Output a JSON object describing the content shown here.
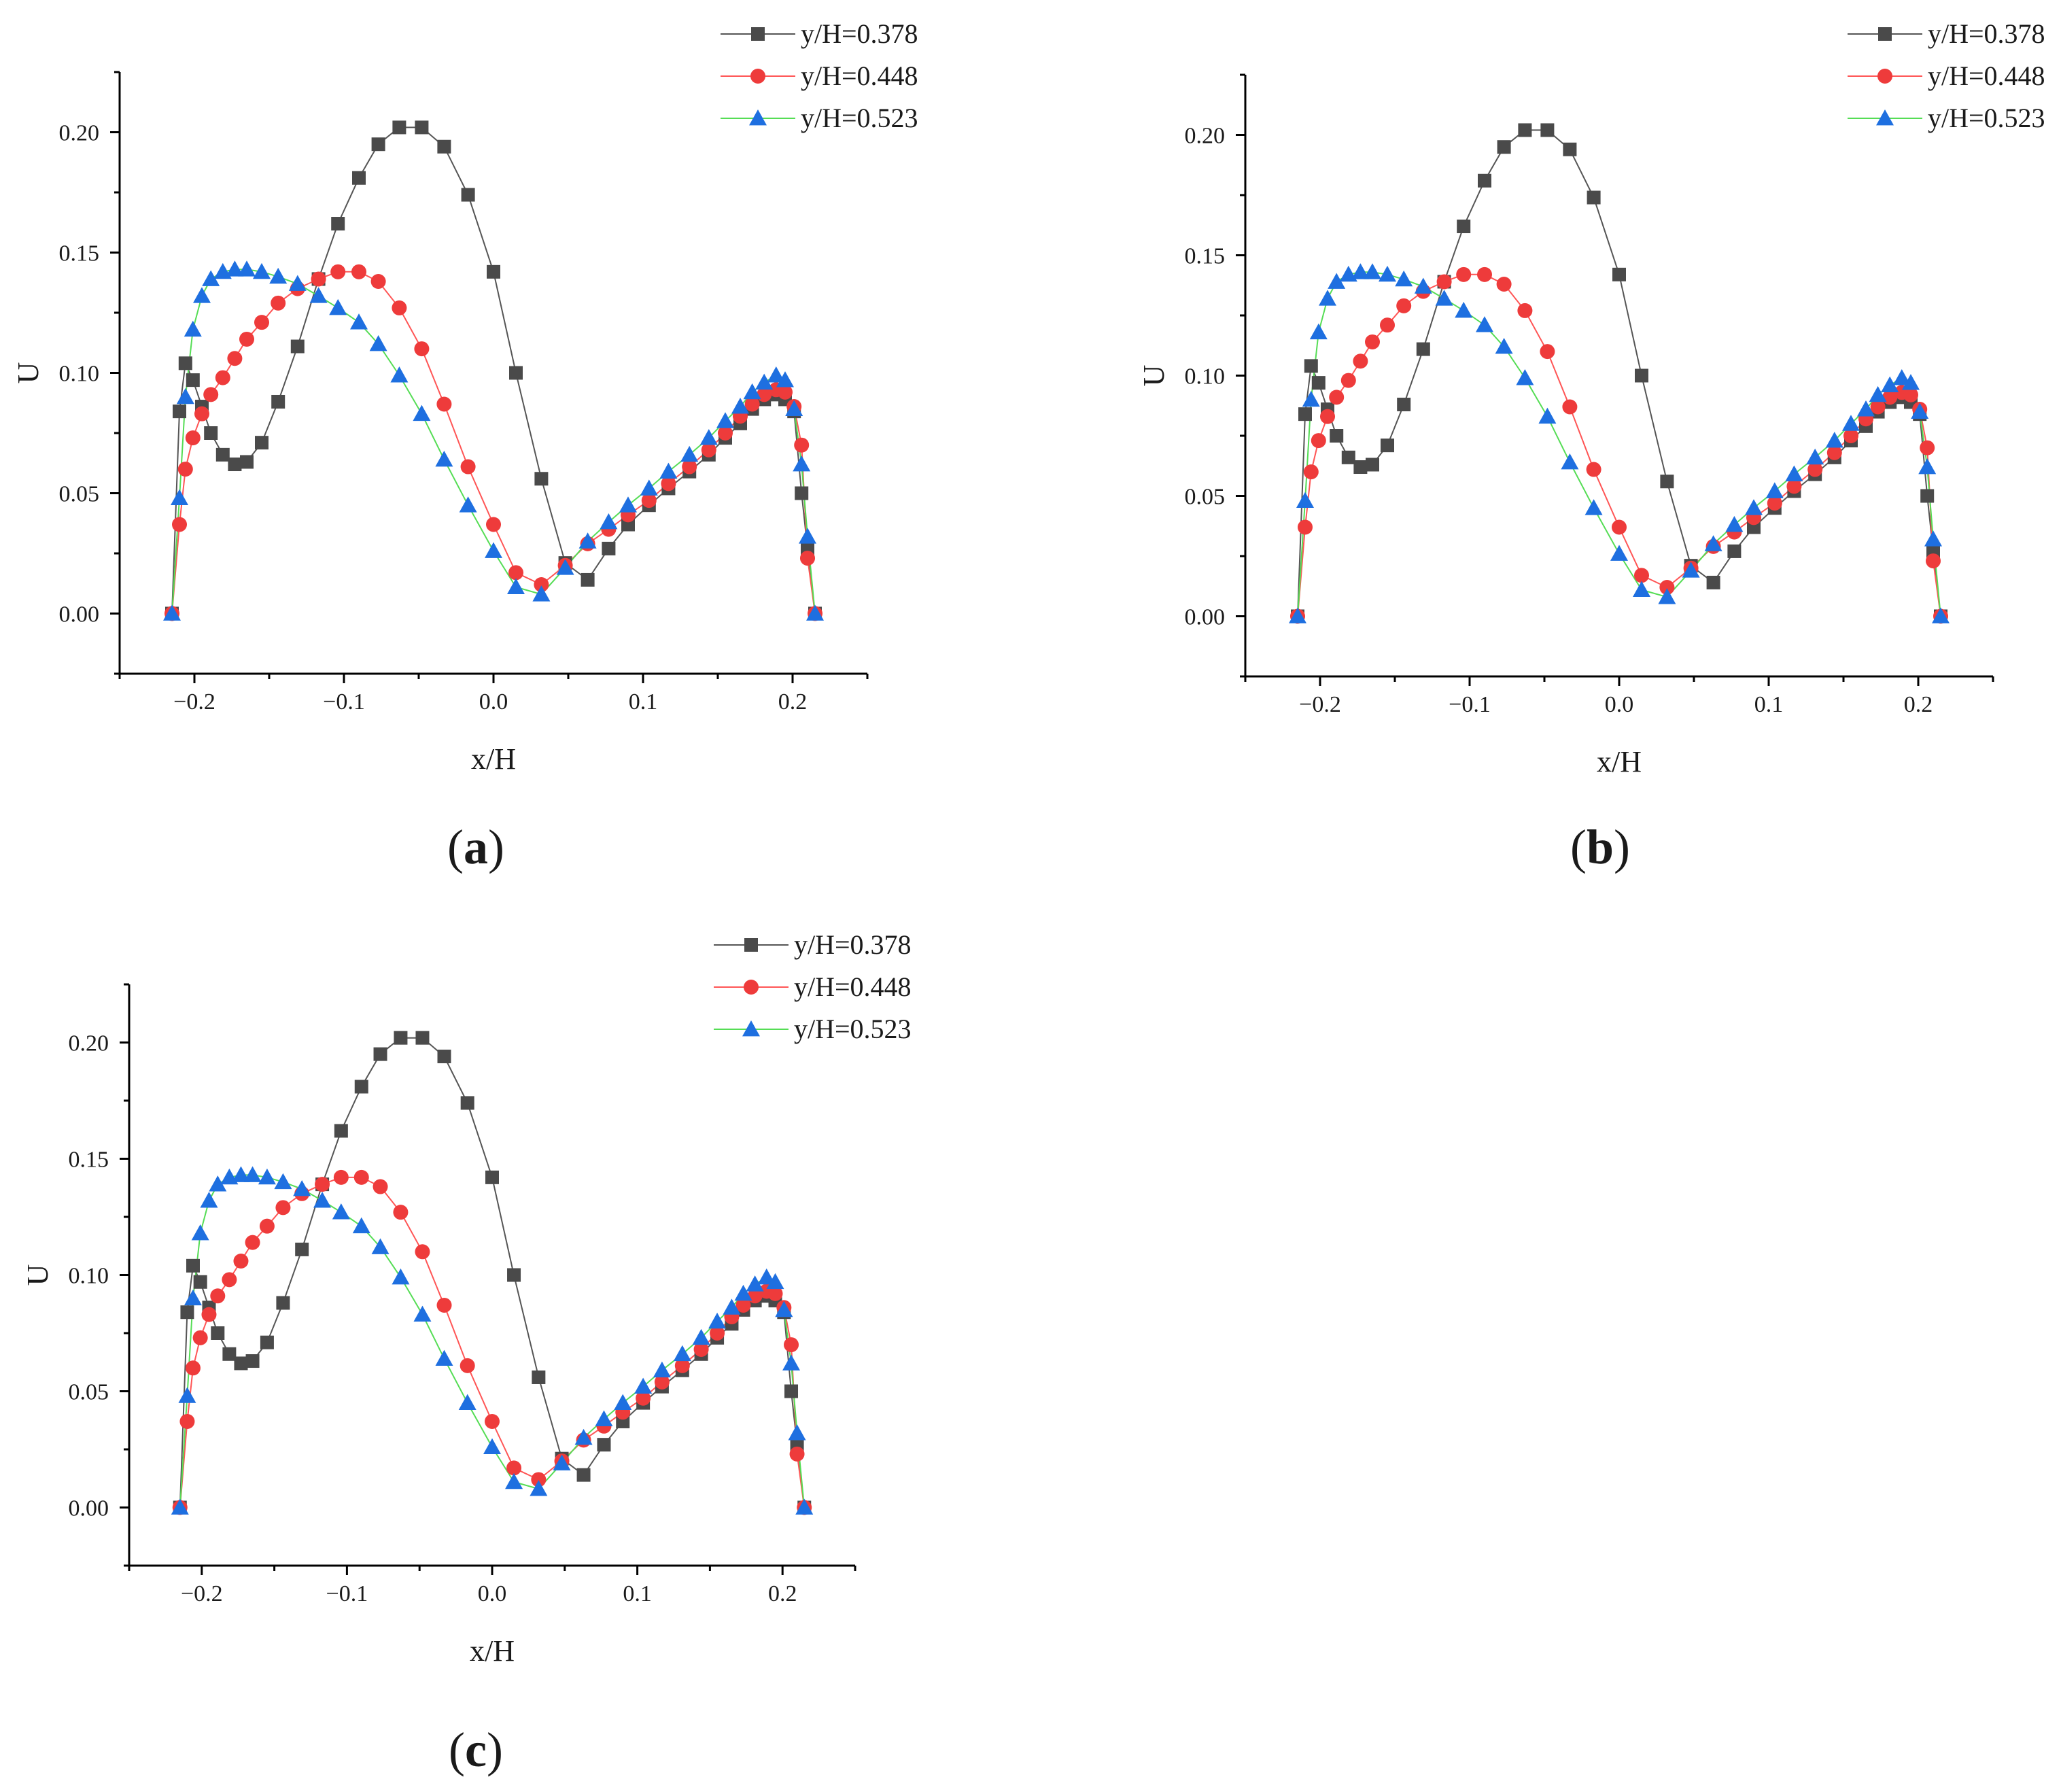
{
  "figure": {
    "panels": [
      {
        "id": "a",
        "label_open": "(",
        "label_letter": "a",
        "label_close": ")"
      },
      {
        "id": "b",
        "label_open": "(",
        "label_letter": "b",
        "label_close": ")"
      },
      {
        "id": "c",
        "label_open": "(",
        "label_letter": "c",
        "label_close": ")"
      }
    ]
  },
  "chart_data": [
    {
      "panel": "a",
      "type": "line",
      "xlabel": "x/H",
      "ylabel": "U",
      "xlim": [
        -0.25,
        0.25
      ],
      "ylim": [
        -0.025,
        0.225
      ],
      "xticks": [
        -0.2,
        -0.1,
        0.0,
        0.1,
        0.2
      ],
      "xtick_labels": [
        "−0.2",
        "−0.1",
        "0.0",
        "0.1",
        "0.2"
      ],
      "yticks": [
        0.0,
        0.05,
        0.1,
        0.15,
        0.2
      ],
      "ytick_labels": [
        "0.00",
        "0.05",
        "0.10",
        "0.15",
        "0.20"
      ],
      "legend_position": "top-right",
      "series": [
        {
          "name": "y/H=0.378",
          "marker": "square",
          "line_color": "#555555",
          "marker_color": "#4a4a4a",
          "x": [
            -0.215,
            -0.21,
            -0.206,
            -0.201,
            -0.195,
            -0.189,
            -0.181,
            -0.173,
            -0.165,
            -0.155,
            -0.144,
            -0.131,
            -0.117,
            -0.104,
            -0.09,
            -0.077,
            -0.063,
            -0.048,
            -0.033,
            -0.017,
            0.0,
            0.015,
            0.032,
            0.048,
            0.063,
            0.077,
            0.09,
            0.104,
            0.117,
            0.131,
            0.144,
            0.155,
            0.165,
            0.173,
            0.181,
            0.189,
            0.195,
            0.201,
            0.206,
            0.21,
            0.215
          ],
          "y": [
            0.0,
            0.084,
            0.104,
            0.097,
            0.086,
            0.075,
            0.066,
            0.062,
            0.063,
            0.071,
            0.088,
            0.111,
            0.139,
            0.162,
            0.181,
            0.195,
            0.202,
            0.202,
            0.194,
            0.174,
            0.142,
            0.1,
            0.056,
            0.021,
            0.014,
            0.027,
            0.037,
            0.045,
            0.052,
            0.059,
            0.066,
            0.073,
            0.079,
            0.085,
            0.089,
            0.091,
            0.089,
            0.084,
            0.05,
            0.027,
            0.0
          ]
        },
        {
          "name": "y/H=0.448",
          "marker": "circle",
          "line_color": "#ff5555",
          "marker_color": "#ee3b3b",
          "x": [
            -0.215,
            -0.21,
            -0.206,
            -0.201,
            -0.195,
            -0.189,
            -0.181,
            -0.173,
            -0.165,
            -0.155,
            -0.144,
            -0.131,
            -0.117,
            -0.104,
            -0.09,
            -0.077,
            -0.063,
            -0.048,
            -0.033,
            -0.017,
            0.0,
            0.015,
            0.032,
            0.048,
            0.063,
            0.077,
            0.09,
            0.104,
            0.117,
            0.131,
            0.144,
            0.155,
            0.165,
            0.173,
            0.181,
            0.189,
            0.195,
            0.201,
            0.206,
            0.21,
            0.215
          ],
          "y": [
            0.0,
            0.037,
            0.06,
            0.073,
            0.083,
            0.091,
            0.098,
            0.106,
            0.114,
            0.121,
            0.129,
            0.135,
            0.139,
            0.142,
            0.142,
            0.138,
            0.127,
            0.11,
            0.087,
            0.061,
            0.037,
            0.017,
            0.012,
            0.02,
            0.029,
            0.035,
            0.041,
            0.047,
            0.054,
            0.061,
            0.068,
            0.075,
            0.082,
            0.087,
            0.091,
            0.093,
            0.092,
            0.086,
            0.07,
            0.023,
            0.0
          ]
        },
        {
          "name": "y/H=0.523",
          "marker": "triangle",
          "line_color": "#55dd55",
          "marker_color": "#1e6fe0",
          "x": [
            -0.215,
            -0.21,
            -0.206,
            -0.201,
            -0.195,
            -0.189,
            -0.181,
            -0.173,
            -0.165,
            -0.155,
            -0.144,
            -0.131,
            -0.117,
            -0.104,
            -0.09,
            -0.077,
            -0.063,
            -0.048,
            -0.033,
            -0.017,
            0.0,
            0.015,
            0.032,
            0.048,
            0.063,
            0.077,
            0.09,
            0.104,
            0.117,
            0.131,
            0.144,
            0.155,
            0.165,
            0.173,
            0.181,
            0.189,
            0.195,
            0.201,
            0.206,
            0.21,
            0.215
          ],
          "y": [
            0.0,
            0.048,
            0.09,
            0.118,
            0.132,
            0.139,
            0.142,
            0.143,
            0.143,
            0.142,
            0.14,
            0.137,
            0.132,
            0.127,
            0.121,
            0.112,
            0.099,
            0.083,
            0.064,
            0.045,
            0.026,
            0.011,
            0.008,
            0.019,
            0.03,
            0.038,
            0.045,
            0.052,
            0.059,
            0.066,
            0.073,
            0.08,
            0.086,
            0.092,
            0.096,
            0.099,
            0.097,
            0.085,
            0.062,
            0.032,
            0.0
          ]
        }
      ]
    },
    {
      "panel": "b",
      "type": "line",
      "xlabel": "x/H",
      "ylabel": "U",
      "xlim": [
        -0.25,
        0.25
      ],
      "ylim": [
        -0.025,
        0.225
      ],
      "xticks": [
        -0.2,
        -0.1,
        0.0,
        0.1,
        0.2
      ],
      "xtick_labels": [
        "−0.2",
        "−0.1",
        "0.0",
        "0.1",
        "0.2"
      ],
      "yticks": [
        0.0,
        0.05,
        0.1,
        0.15,
        0.2
      ],
      "ytick_labels": [
        "0.00",
        "0.05",
        "0.10",
        "0.15",
        "0.20"
      ],
      "legend_position": "top-right",
      "series": [
        {
          "name": "y/H=0.378",
          "marker": "square",
          "line_color": "#555555",
          "marker_color": "#4a4a4a",
          "x": [
            -0.215,
            -0.21,
            -0.206,
            -0.201,
            -0.195,
            -0.189,
            -0.181,
            -0.173,
            -0.165,
            -0.155,
            -0.144,
            -0.131,
            -0.117,
            -0.104,
            -0.09,
            -0.077,
            -0.063,
            -0.048,
            -0.033,
            -0.017,
            0.0,
            0.015,
            0.032,
            0.048,
            0.063,
            0.077,
            0.09,
            0.104,
            0.117,
            0.131,
            0.144,
            0.155,
            0.165,
            0.173,
            0.181,
            0.189,
            0.195,
            0.201,
            0.206,
            0.21,
            0.215
          ],
          "y": [
            0.0,
            0.084,
            0.104,
            0.097,
            0.086,
            0.075,
            0.066,
            0.062,
            0.063,
            0.071,
            0.088,
            0.111,
            0.139,
            0.162,
            0.181,
            0.195,
            0.202,
            0.202,
            0.194,
            0.174,
            0.142,
            0.1,
            0.056,
            0.021,
            0.014,
            0.027,
            0.037,
            0.045,
            0.052,
            0.059,
            0.066,
            0.073,
            0.079,
            0.085,
            0.089,
            0.091,
            0.089,
            0.084,
            0.05,
            0.027,
            0.0
          ]
        },
        {
          "name": "y/H=0.448",
          "marker": "circle",
          "line_color": "#ff5555",
          "marker_color": "#ee3b3b",
          "x": [
            -0.215,
            -0.21,
            -0.206,
            -0.201,
            -0.195,
            -0.189,
            -0.181,
            -0.173,
            -0.165,
            -0.155,
            -0.144,
            -0.131,
            -0.117,
            -0.104,
            -0.09,
            -0.077,
            -0.063,
            -0.048,
            -0.033,
            -0.017,
            0.0,
            0.015,
            0.032,
            0.048,
            0.063,
            0.077,
            0.09,
            0.104,
            0.117,
            0.131,
            0.144,
            0.155,
            0.165,
            0.173,
            0.181,
            0.189,
            0.195,
            0.201,
            0.206,
            0.21,
            0.215
          ],
          "y": [
            0.0,
            0.037,
            0.06,
            0.073,
            0.083,
            0.091,
            0.098,
            0.106,
            0.114,
            0.121,
            0.129,
            0.135,
            0.139,
            0.142,
            0.142,
            0.138,
            0.127,
            0.11,
            0.087,
            0.061,
            0.037,
            0.017,
            0.012,
            0.02,
            0.029,
            0.035,
            0.041,
            0.047,
            0.054,
            0.061,
            0.068,
            0.075,
            0.082,
            0.087,
            0.091,
            0.093,
            0.092,
            0.086,
            0.07,
            0.023,
            0.0
          ]
        },
        {
          "name": "y/H=0.523",
          "marker": "triangle",
          "line_color": "#55dd55",
          "marker_color": "#1e6fe0",
          "x": [
            -0.215,
            -0.21,
            -0.206,
            -0.201,
            -0.195,
            -0.189,
            -0.181,
            -0.173,
            -0.165,
            -0.155,
            -0.144,
            -0.131,
            -0.117,
            -0.104,
            -0.09,
            -0.077,
            -0.063,
            -0.048,
            -0.033,
            -0.017,
            0.0,
            0.015,
            0.032,
            0.048,
            0.063,
            0.077,
            0.09,
            0.104,
            0.117,
            0.131,
            0.144,
            0.155,
            0.165,
            0.173,
            0.181,
            0.189,
            0.195,
            0.201,
            0.206,
            0.21,
            0.215
          ],
          "y": [
            0.0,
            0.048,
            0.09,
            0.118,
            0.132,
            0.139,
            0.142,
            0.143,
            0.143,
            0.142,
            0.14,
            0.137,
            0.132,
            0.127,
            0.121,
            0.112,
            0.099,
            0.083,
            0.064,
            0.045,
            0.026,
            0.011,
            0.008,
            0.019,
            0.03,
            0.038,
            0.045,
            0.052,
            0.059,
            0.066,
            0.073,
            0.08,
            0.086,
            0.092,
            0.096,
            0.099,
            0.097,
            0.085,
            0.062,
            0.032,
            0.0
          ]
        }
      ]
    },
    {
      "panel": "c",
      "type": "line",
      "xlabel": "x/H",
      "ylabel": "U",
      "xlim": [
        -0.25,
        0.25
      ],
      "ylim": [
        -0.025,
        0.225
      ],
      "xticks": [
        -0.2,
        -0.1,
        0.0,
        0.1,
        0.2
      ],
      "xtick_labels": [
        "−0.2",
        "−0.1",
        "0.0",
        "0.1",
        "0.2"
      ],
      "yticks": [
        0.0,
        0.05,
        0.1,
        0.15,
        0.2
      ],
      "ytick_labels": [
        "0.00",
        "0.05",
        "0.10",
        "0.15",
        "0.20"
      ],
      "legend_position": "top-right",
      "series": [
        {
          "name": "y/H=0.378",
          "marker": "square",
          "line_color": "#555555",
          "marker_color": "#4a4a4a",
          "x": [
            -0.215,
            -0.21,
            -0.206,
            -0.201,
            -0.195,
            -0.189,
            -0.181,
            -0.173,
            -0.165,
            -0.155,
            -0.144,
            -0.131,
            -0.117,
            -0.104,
            -0.09,
            -0.077,
            -0.063,
            -0.048,
            -0.033,
            -0.017,
            0.0,
            0.015,
            0.032,
            0.048,
            0.063,
            0.077,
            0.09,
            0.104,
            0.117,
            0.131,
            0.144,
            0.155,
            0.165,
            0.173,
            0.181,
            0.189,
            0.195,
            0.201,
            0.206,
            0.21,
            0.215
          ],
          "y": [
            0.0,
            0.084,
            0.104,
            0.097,
            0.086,
            0.075,
            0.066,
            0.062,
            0.063,
            0.071,
            0.088,
            0.111,
            0.139,
            0.162,
            0.181,
            0.195,
            0.202,
            0.202,
            0.194,
            0.174,
            0.142,
            0.1,
            0.056,
            0.021,
            0.014,
            0.027,
            0.037,
            0.045,
            0.052,
            0.059,
            0.066,
            0.073,
            0.079,
            0.085,
            0.089,
            0.091,
            0.089,
            0.084,
            0.05,
            0.027,
            0.0
          ]
        },
        {
          "name": "y/H=0.448",
          "marker": "circle",
          "line_color": "#ff5555",
          "marker_color": "#ee3b3b",
          "x": [
            -0.215,
            -0.21,
            -0.206,
            -0.201,
            -0.195,
            -0.189,
            -0.181,
            -0.173,
            -0.165,
            -0.155,
            -0.144,
            -0.131,
            -0.117,
            -0.104,
            -0.09,
            -0.077,
            -0.063,
            -0.048,
            -0.033,
            -0.017,
            0.0,
            0.015,
            0.032,
            0.048,
            0.063,
            0.077,
            0.09,
            0.104,
            0.117,
            0.131,
            0.144,
            0.155,
            0.165,
            0.173,
            0.181,
            0.189,
            0.195,
            0.201,
            0.206,
            0.21,
            0.215
          ],
          "y": [
            0.0,
            0.037,
            0.06,
            0.073,
            0.083,
            0.091,
            0.098,
            0.106,
            0.114,
            0.121,
            0.129,
            0.135,
            0.139,
            0.142,
            0.142,
            0.138,
            0.127,
            0.11,
            0.087,
            0.061,
            0.037,
            0.017,
            0.012,
            0.02,
            0.029,
            0.035,
            0.041,
            0.047,
            0.054,
            0.061,
            0.068,
            0.075,
            0.082,
            0.087,
            0.091,
            0.093,
            0.092,
            0.086,
            0.07,
            0.023,
            0.0
          ]
        },
        {
          "name": "y/H=0.523",
          "marker": "triangle",
          "line_color": "#55dd55",
          "marker_color": "#1e6fe0",
          "x": [
            -0.215,
            -0.21,
            -0.206,
            -0.201,
            -0.195,
            -0.189,
            -0.181,
            -0.173,
            -0.165,
            -0.155,
            -0.144,
            -0.131,
            -0.117,
            -0.104,
            -0.09,
            -0.077,
            -0.063,
            -0.048,
            -0.033,
            -0.017,
            0.0,
            0.015,
            0.032,
            0.048,
            0.063,
            0.077,
            0.09,
            0.104,
            0.117,
            0.131,
            0.144,
            0.155,
            0.165,
            0.173,
            0.181,
            0.189,
            0.195,
            0.201,
            0.206,
            0.21,
            0.215
          ],
          "y": [
            0.0,
            0.048,
            0.09,
            0.118,
            0.132,
            0.139,
            0.142,
            0.143,
            0.143,
            0.142,
            0.14,
            0.137,
            0.132,
            0.127,
            0.121,
            0.112,
            0.099,
            0.083,
            0.064,
            0.045,
            0.026,
            0.011,
            0.008,
            0.019,
            0.03,
            0.038,
            0.045,
            0.052,
            0.059,
            0.066,
            0.073,
            0.08,
            0.086,
            0.092,
            0.096,
            0.099,
            0.097,
            0.085,
            0.062,
            0.032,
            0.0
          ]
        }
      ]
    }
  ]
}
